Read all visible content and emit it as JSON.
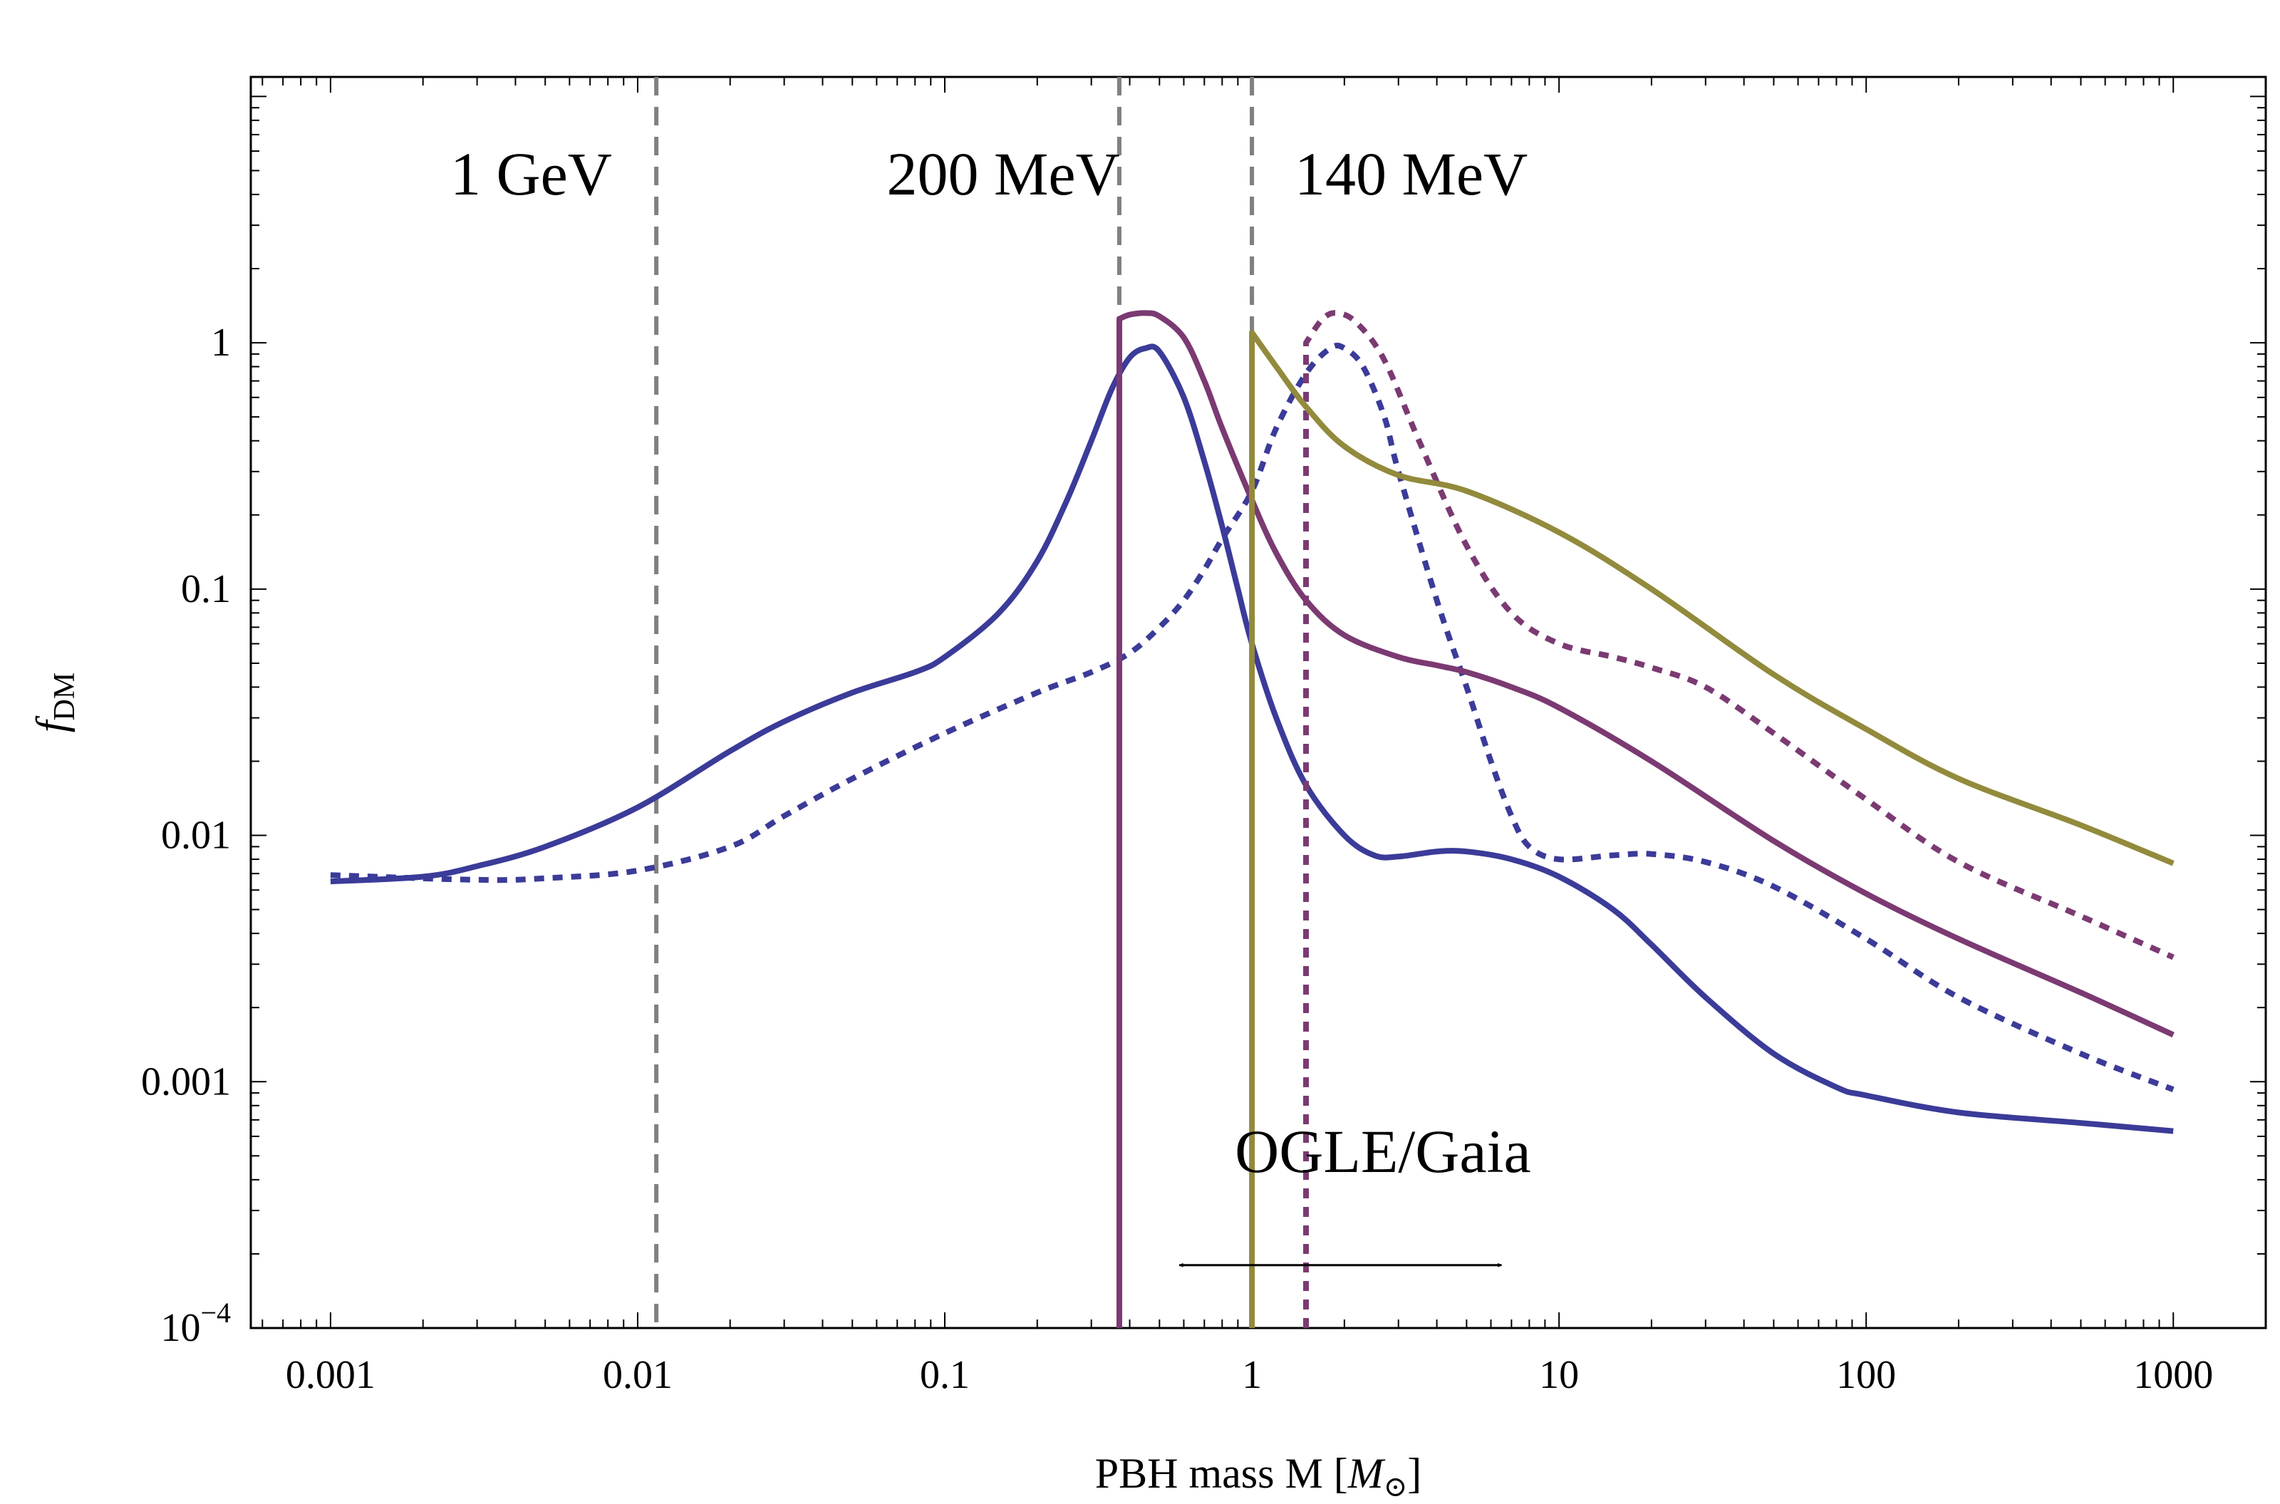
{
  "chart_data": {
    "type": "line",
    "title": "",
    "xlabel": "PBH mass M [M⊙]",
    "xlabel_main": "PBH mass M [",
    "xlabel_sym": "M",
    "xlabel_sub": "⊙",
    "xlabel_close": "]",
    "ylabel": "fDM",
    "ylabel_main": "f",
    "ylabel_sub": "DM",
    "xscale": "log",
    "yscale": "log",
    "xlim": [
      0.00055,
      2000
    ],
    "ylim": [
      0.0001,
      12
    ],
    "x_ticks": [
      {
        "value": 0.001,
        "label": "0.001"
      },
      {
        "value": 0.01,
        "label": "0.01"
      },
      {
        "value": 0.1,
        "label": "0.1"
      },
      {
        "value": 1,
        "label": "1"
      },
      {
        "value": 10,
        "label": "10"
      },
      {
        "value": 100,
        "label": "100"
      },
      {
        "value": 1000,
        "label": "1000"
      }
    ],
    "y_ticks": [
      {
        "value": 0.0001,
        "label": "10",
        "sup": "−4"
      },
      {
        "value": 0.001,
        "label": "0.001"
      },
      {
        "value": 0.01,
        "label": "0.01"
      },
      {
        "value": 0.1,
        "label": "0.1"
      },
      {
        "value": 1,
        "label": "1"
      }
    ],
    "colors": {
      "blue": "#3b3b99",
      "purple": "#7b3a72",
      "olive": "#928a3c",
      "gray": "#808080"
    },
    "threshold_lines": [
      {
        "x": 0.0115,
        "label": "1 GeV",
        "label_x": 0.0045,
        "label_y": 4.0
      },
      {
        "x": 0.37,
        "label": "200 MeV",
        "label_x": 0.155,
        "label_y": 4.0
      },
      {
        "x": 1.0,
        "label": "140 MeV",
        "label_x": 3.3,
        "label_y": 4.0
      }
    ],
    "series": [
      {
        "name": "blue-solid",
        "color": "blue",
        "dash": "solid",
        "points": [
          [
            0.001,
            0.0065
          ],
          [
            0.002,
            0.0068
          ],
          [
            0.003,
            0.0075
          ],
          [
            0.005,
            0.009
          ],
          [
            0.01,
            0.013
          ],
          [
            0.02,
            0.022
          ],
          [
            0.03,
            0.029
          ],
          [
            0.05,
            0.038
          ],
          [
            0.08,
            0.046
          ],
          [
            0.1,
            0.053
          ],
          [
            0.15,
            0.08
          ],
          [
            0.2,
            0.13
          ],
          [
            0.25,
            0.23
          ],
          [
            0.3,
            0.4
          ],
          [
            0.35,
            0.65
          ],
          [
            0.4,
            0.87
          ],
          [
            0.45,
            0.95
          ],
          [
            0.5,
            0.92
          ],
          [
            0.6,
            0.6
          ],
          [
            0.7,
            0.33
          ],
          [
            0.8,
            0.18
          ],
          [
            0.9,
            0.1
          ],
          [
            1.0,
            0.06
          ],
          [
            1.2,
            0.03
          ],
          [
            1.5,
            0.016
          ],
          [
            2.0,
            0.01
          ],
          [
            2.5,
            0.0083
          ],
          [
            3.0,
            0.0082
          ],
          [
            4.0,
            0.0086
          ],
          [
            5.0,
            0.0086
          ],
          [
            7.0,
            0.008
          ],
          [
            10,
            0.0068
          ],
          [
            15,
            0.005
          ],
          [
            20,
            0.0036
          ],
          [
            30,
            0.0022
          ],
          [
            50,
            0.0013
          ],
          [
            80,
            0.00095
          ],
          [
            100,
            0.00088
          ],
          [
            200,
            0.00075
          ],
          [
            500,
            0.00068
          ],
          [
            1000,
            0.00063
          ]
        ]
      },
      {
        "name": "blue-dotted",
        "color": "blue",
        "dash": "dotted",
        "points": [
          [
            0.001,
            0.0069
          ],
          [
            0.003,
            0.0066
          ],
          [
            0.005,
            0.0067
          ],
          [
            0.01,
            0.0072
          ],
          [
            0.02,
            0.009
          ],
          [
            0.03,
            0.012
          ],
          [
            0.05,
            0.017
          ],
          [
            0.1,
            0.026
          ],
          [
            0.2,
            0.038
          ],
          [
            0.3,
            0.046
          ],
          [
            0.4,
            0.055
          ],
          [
            0.5,
            0.07
          ],
          [
            0.6,
            0.09
          ],
          [
            0.7,
            0.12
          ],
          [
            0.8,
            0.16
          ],
          [
            1.0,
            0.25
          ],
          [
            1.2,
            0.45
          ],
          [
            1.5,
            0.75
          ],
          [
            1.8,
            0.95
          ],
          [
            2.0,
            0.95
          ],
          [
            2.3,
            0.8
          ],
          [
            2.7,
            0.5
          ],
          [
            3.0,
            0.3
          ],
          [
            4.0,
            0.09
          ],
          [
            5.0,
            0.04
          ],
          [
            6.0,
            0.02
          ],
          [
            7.0,
            0.012
          ],
          [
            8.0,
            0.009
          ],
          [
            10,
            0.008
          ],
          [
            15,
            0.0083
          ],
          [
            20,
            0.0084
          ],
          [
            30,
            0.0078
          ],
          [
            50,
            0.0062
          ],
          [
            100,
            0.0038
          ],
          [
            200,
            0.0022
          ],
          [
            500,
            0.0013
          ],
          [
            1000,
            0.00093
          ]
        ]
      },
      {
        "name": "purple-solid",
        "color": "purple",
        "dash": "solid",
        "points": [
          [
            0.37,
            0.0001
          ],
          [
            0.37,
            1.25
          ],
          [
            0.4,
            1.3
          ],
          [
            0.45,
            1.32
          ],
          [
            0.5,
            1.28
          ],
          [
            0.6,
            1.05
          ],
          [
            0.7,
            0.7
          ],
          [
            0.8,
            0.45
          ],
          [
            1.0,
            0.23
          ],
          [
            1.2,
            0.14
          ],
          [
            1.5,
            0.09
          ],
          [
            2.0,
            0.065
          ],
          [
            3.0,
            0.053
          ],
          [
            4.0,
            0.049
          ],
          [
            5.0,
            0.046
          ],
          [
            7.0,
            0.04
          ],
          [
            10,
            0.033
          ],
          [
            20,
            0.02
          ],
          [
            50,
            0.0095
          ],
          [
            100,
            0.0058
          ],
          [
            200,
            0.0038
          ],
          [
            500,
            0.0023
          ],
          [
            1000,
            0.00155
          ]
        ]
      },
      {
        "name": "purple-dotted",
        "color": "purple",
        "dash": "dotted",
        "points": [
          [
            1.5,
            0.0001
          ],
          [
            1.5,
            1.0
          ],
          [
            1.7,
            1.25
          ],
          [
            1.9,
            1.32
          ],
          [
            2.2,
            1.2
          ],
          [
            2.7,
            0.85
          ],
          [
            3.5,
            0.4
          ],
          [
            5.0,
            0.15
          ],
          [
            7.0,
            0.08
          ],
          [
            10,
            0.06
          ],
          [
            15,
            0.053
          ],
          [
            20,
            0.048
          ],
          [
            30,
            0.04
          ],
          [
            50,
            0.026
          ],
          [
            100,
            0.014
          ],
          [
            200,
            0.0078
          ],
          [
            500,
            0.0047
          ],
          [
            1000,
            0.0032
          ]
        ]
      },
      {
        "name": "olive-solid",
        "color": "olive",
        "dash": "solid",
        "points": [
          [
            1.0,
            0.0001
          ],
          [
            1.0,
            1.1
          ],
          [
            1.2,
            0.8
          ],
          [
            1.5,
            0.55
          ],
          [
            2.0,
            0.38
          ],
          [
            3.0,
            0.29
          ],
          [
            5.0,
            0.25
          ],
          [
            10,
            0.17
          ],
          [
            20,
            0.1
          ],
          [
            50,
            0.045
          ],
          [
            100,
            0.027
          ],
          [
            200,
            0.017
          ],
          [
            500,
            0.011
          ],
          [
            1000,
            0.0077
          ]
        ]
      }
    ],
    "annotation": {
      "label": "OGLE/Gaia",
      "label_x": 0.88,
      "label_y": 0.00043,
      "arrow_from": 0.58,
      "arrow_to": 6.5,
      "arrow_y": 0.00018
    }
  }
}
